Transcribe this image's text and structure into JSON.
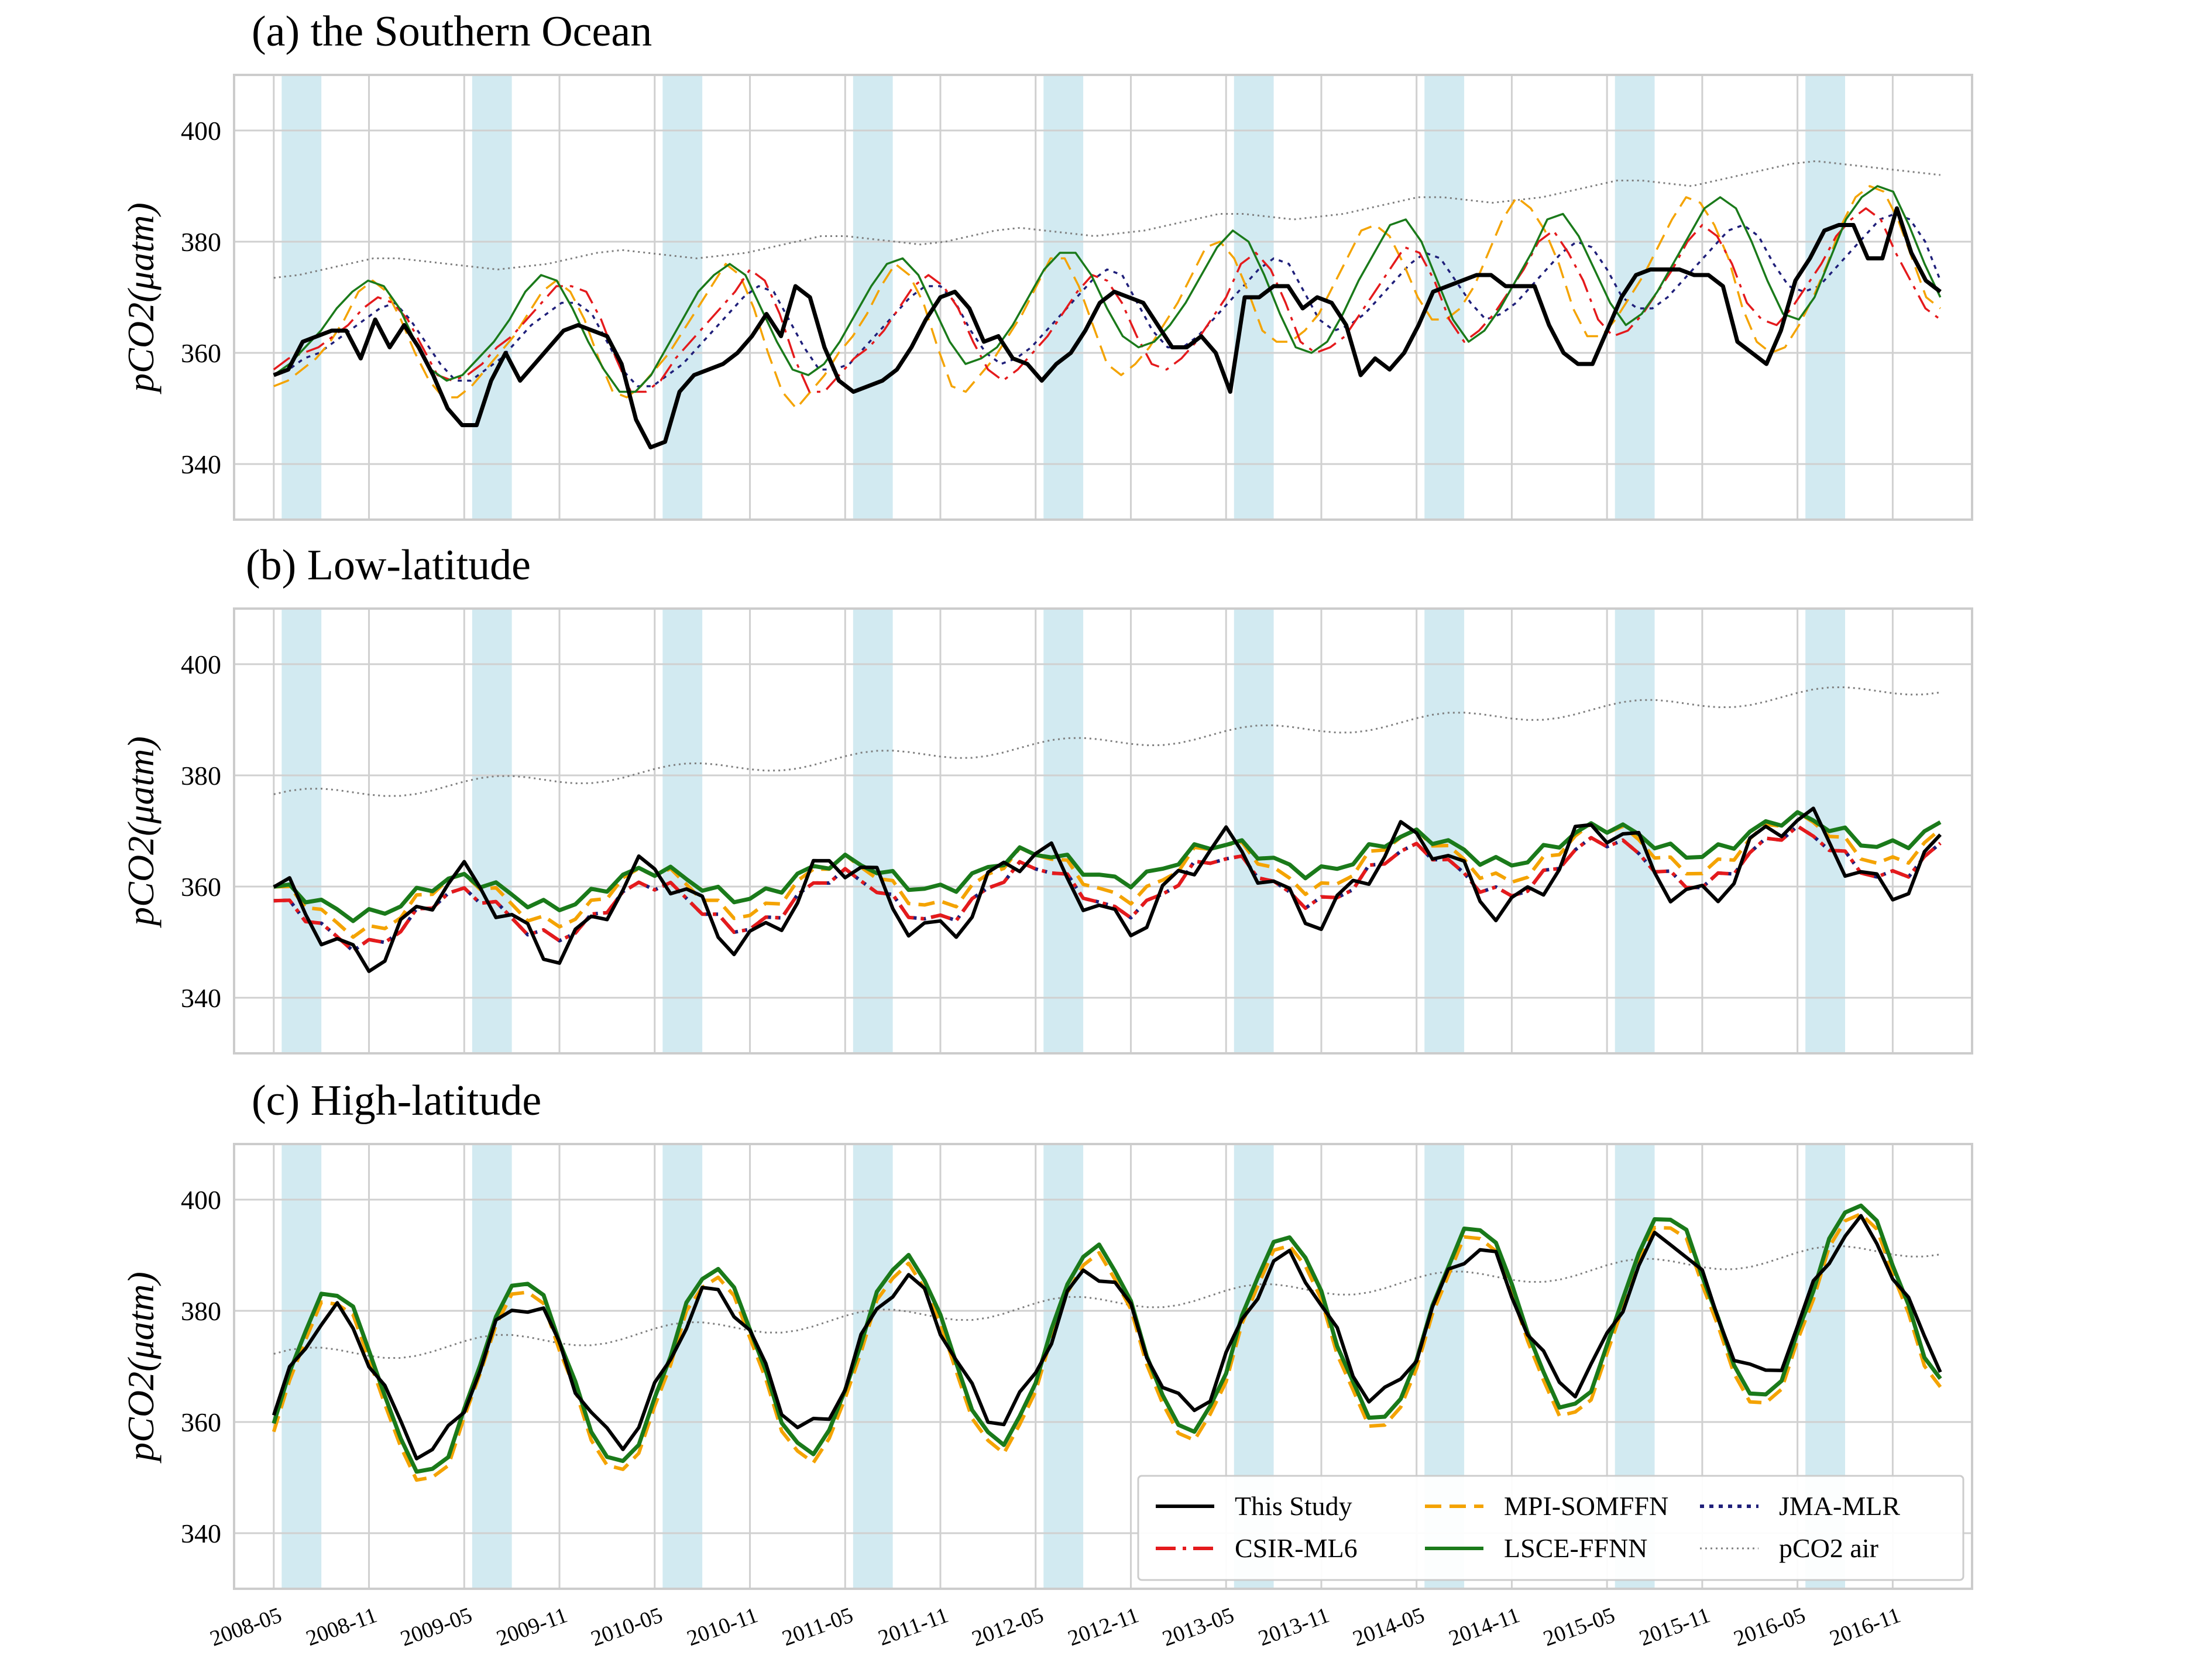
{
  "chart_data": [
    {
      "type": "line",
      "title": "(a) the Southern Ocean",
      "ylabel": "pCO2(μatm)",
      "ylim": [
        330,
        410
      ],
      "yticks": [
        340,
        360,
        380,
        400
      ],
      "x_start": "2008-05",
      "x_end": "2017-02",
      "shaded_months": [
        "Jun-Aug"
      ],
      "series": [
        {
          "name": "This Study",
          "values": [
            356,
            357,
            362,
            363,
            364,
            364,
            359,
            366,
            361,
            365,
            361,
            356,
            350,
            347,
            347,
            355,
            360,
            355,
            358,
            361,
            364,
            365,
            364,
            363,
            358,
            348,
            343,
            344,
            353,
            356,
            357,
            358,
            360,
            363,
            367,
            363,
            372,
            370,
            361,
            355,
            353,
            354,
            355,
            357,
            361,
            366,
            370,
            371,
            368,
            362,
            363,
            359,
            358,
            355,
            358,
            360,
            364,
            369,
            371,
            370,
            369,
            365,
            361,
            361,
            363,
            360,
            353,
            370,
            370,
            372,
            372,
            368,
            370,
            369,
            365,
            356,
            359,
            357,
            360,
            365,
            371,
            372,
            373,
            374,
            374,
            372,
            372,
            372,
            365,
            360,
            358,
            358,
            364,
            370,
            374,
            375,
            375,
            375,
            374,
            374,
            372,
            362,
            360,
            358,
            364,
            373,
            377,
            382,
            383,
            383,
            377,
            377,
            386,
            378,
            373,
            371
          ]
        },
        {
          "name": "CSIR-ML6",
          "values": [
            357,
            359,
            360,
            361,
            363,
            365,
            368,
            370,
            369,
            366,
            361,
            356,
            355,
            356,
            358,
            361,
            363,
            366,
            369,
            372,
            372,
            371,
            366,
            359,
            353,
            353,
            355,
            359,
            362,
            365,
            368,
            371,
            375,
            373,
            367,
            359,
            353,
            353,
            356,
            359,
            361,
            364,
            368,
            372,
            374,
            372,
            368,
            362,
            357,
            355,
            357,
            360,
            363,
            367,
            371,
            374,
            373,
            369,
            363,
            358,
            357,
            359,
            362,
            366,
            370,
            376,
            378,
            375,
            369,
            362,
            360,
            361,
            363,
            367,
            371,
            375,
            379,
            378,
            373,
            366,
            362,
            364,
            367,
            371,
            375,
            380,
            382,
            378,
            373,
            366,
            363,
            364,
            367,
            371,
            375,
            380,
            383,
            381,
            376,
            369,
            366,
            365,
            368,
            372,
            376,
            381,
            384,
            386,
            384,
            378,
            373,
            368,
            366
          ]
        },
        {
          "name": "MPI-SOMFFN",
          "values": [
            354,
            355,
            357,
            359,
            362,
            366,
            371,
            373,
            371,
            366,
            360,
            355,
            352,
            352,
            354,
            357,
            360,
            363,
            367,
            371,
            373,
            371,
            366,
            359,
            353,
            352,
            354,
            357,
            360,
            364,
            368,
            372,
            376,
            374,
            368,
            360,
            353,
            350,
            353,
            356,
            360,
            363,
            367,
            372,
            376,
            374,
            369,
            361,
            354,
            353,
            356,
            359,
            363,
            367,
            372,
            377,
            377,
            372,
            365,
            358,
            356,
            358,
            361,
            365,
            369,
            374,
            379,
            380,
            377,
            371,
            364,
            362,
            362,
            364,
            367,
            372,
            377,
            382,
            383,
            381,
            376,
            370,
            366,
            366,
            368,
            372,
            378,
            384,
            388,
            386,
            382,
            376,
            368,
            363,
            363,
            366,
            370,
            374,
            379,
            384,
            388,
            387,
            383,
            377,
            368,
            362,
            360,
            361,
            365,
            370,
            376,
            383,
            388,
            390,
            389,
            384,
            377,
            370,
            368
          ]
        },
        {
          "name": "LSCE-FFNN",
          "values": [
            356,
            358,
            361,
            364,
            368,
            371,
            373,
            372,
            368,
            362,
            357,
            355,
            356,
            359,
            362,
            366,
            371,
            374,
            373,
            368,
            362,
            357,
            353,
            353,
            356,
            361,
            366,
            371,
            374,
            376,
            374,
            368,
            362,
            357,
            356,
            358,
            362,
            367,
            372,
            376,
            377,
            374,
            368,
            362,
            358,
            359,
            361,
            365,
            370,
            375,
            378,
            378,
            374,
            368,
            363,
            361,
            362,
            365,
            369,
            374,
            379,
            382,
            380,
            374,
            367,
            361,
            360,
            362,
            367,
            373,
            378,
            383,
            384,
            380,
            373,
            366,
            362,
            364,
            368,
            373,
            378,
            384,
            385,
            381,
            375,
            369,
            365,
            367,
            371,
            376,
            381,
            386,
            388,
            386,
            380,
            373,
            367,
            366,
            370,
            377,
            384,
            388,
            390,
            389,
            383,
            376,
            370
          ]
        },
        {
          "name": "JMA-MLR",
          "values": [
            356,
            357,
            359,
            360,
            362,
            364,
            366,
            368,
            369,
            366,
            362,
            358,
            355,
            355,
            357,
            359,
            362,
            365,
            367,
            369,
            369,
            367,
            362,
            357,
            354,
            354,
            356,
            358,
            361,
            364,
            367,
            370,
            372,
            371,
            366,
            361,
            357,
            357,
            358,
            361,
            364,
            367,
            370,
            372,
            372,
            369,
            364,
            360,
            358,
            359,
            361,
            364,
            367,
            370,
            373,
            375,
            374,
            369,
            364,
            361,
            361,
            363,
            366,
            369,
            372,
            375,
            377,
            376,
            371,
            366,
            364,
            365,
            367,
            370,
            373,
            376,
            378,
            377,
            373,
            369,
            366,
            367,
            369,
            372,
            375,
            378,
            380,
            379,
            375,
            370,
            368,
            368,
            370,
            373,
            376,
            379,
            382,
            383,
            381,
            376,
            372,
            371,
            372,
            375,
            378,
            381,
            384,
            385,
            384,
            380,
            373
          ]
        },
        {
          "name": "pCO2 air",
          "values": [
            373.5,
            374,
            375,
            376,
            377,
            377,
            376.5,
            376,
            375.5,
            375,
            375.5,
            376,
            377,
            378,
            378.5,
            378,
            377.5,
            377,
            377.5,
            378,
            379,
            380,
            381,
            381,
            380.5,
            380,
            379.5,
            380,
            381,
            382,
            382.5,
            382,
            381.5,
            381,
            381.5,
            382,
            383,
            384,
            385,
            385,
            384.5,
            384,
            384.5,
            385,
            386,
            387,
            388,
            388,
            387.5,
            387,
            387.5,
            388,
            389,
            390,
            391,
            391,
            390.5,
            390,
            391,
            392,
            393,
            394,
            394.5,
            394,
            393.5,
            393,
            392.5,
            392
          ]
        }
      ]
    },
    {
      "type": "line",
      "title": "(b) Low-latitude",
      "ylabel": "pCO2(μatm)",
      "ylim": [
        330,
        410
      ],
      "yticks": [
        340,
        360,
        380,
        400
      ]
    },
    {
      "type": "line",
      "title": "(c) High-latitude",
      "ylabel": "pCO2(μatm)",
      "ylim": [
        330,
        410
      ],
      "yticks": [
        340,
        360,
        380,
        400
      ],
      "x_tick_labels": [
        "2008-05",
        "2008-11",
        "2009-05",
        "2009-11",
        "2010-05",
        "2010-11",
        "2011-05",
        "2011-11",
        "2012-05",
        "2012-11",
        "2013-05",
        "2013-11",
        "2014-05",
        "2014-11",
        "2015-05",
        "2015-11",
        "2016-05",
        "2016-11"
      ],
      "legend": {
        "placement": "lower-right",
        "entries": [
          "This Study",
          "CSIR-ML6",
          "MPI-SOMFFN",
          "LSCE-FFNN",
          "JMA-MLR",
          "pCO2 air"
        ]
      }
    }
  ],
  "series_styles": {
    "This Study": {
      "color": "#000000",
      "dash": "solid"
    },
    "CSIR-ML6": {
      "color": "#e41a1c",
      "dash": "dashdot"
    },
    "MPI-SOMFFN": {
      "color": "#f4a300",
      "dash": "dashed"
    },
    "LSCE-FFNN": {
      "color": "#1a7a1a",
      "dash": "solid"
    },
    "JMA-MLR": {
      "color": "#1f1f7a",
      "dash": "dotted"
    },
    "pCO2 air": {
      "color": "#7f7f7f",
      "dash": "fine-dotted"
    }
  },
  "colors": {
    "shade": "#add8e6",
    "grid": "#d0d0d0",
    "frame": "#cccccc"
  }
}
